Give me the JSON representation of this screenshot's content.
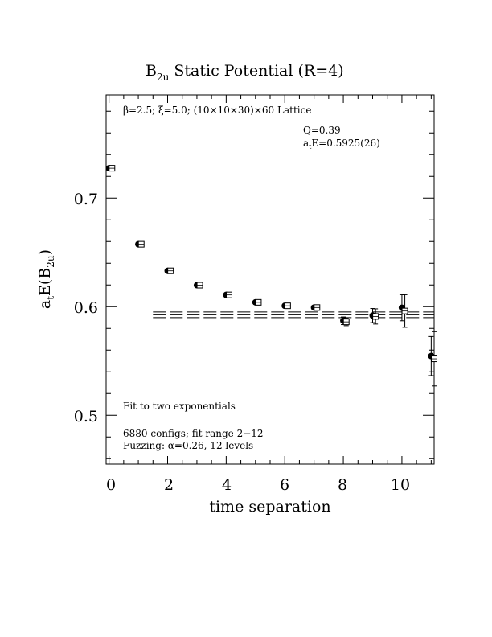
{
  "chart_data": {
    "type": "scatter",
    "title": "B",
    "title_sub": "2u",
    "title_rest": " Static Potential (R=4)",
    "xlabel": "time separation",
    "ylabel_main": "a",
    "ylabel_sub1": "t",
    "ylabel_mid": "E(B",
    "ylabel_sub2": "2u",
    "ylabel_end": ")",
    "xlim": [
      -0.1,
      11.1
    ],
    "ylim": [
      0.455,
      0.795
    ],
    "x_ticks": [
      0,
      2,
      4,
      6,
      8,
      10
    ],
    "y_ticks": [
      0.5,
      0.6,
      0.7
    ],
    "x_tick_labels": [
      "0",
      "2",
      "4",
      "6",
      "8",
      "10"
    ],
    "y_tick_labels": [
      "0.5",
      "0.6",
      "0.7"
    ],
    "grid": false,
    "legend": "none",
    "lattice_note": {
      "beta": "β=2.5;",
      "xi": "ξ=5.0;",
      "lattice": "(10×10×30)×60 Lattice"
    },
    "fit_quality": "Q=0.39",
    "fit_result_prefix": "a",
    "fit_result_sub": "t",
    "fit_result_rest": "E=0.5925(26)",
    "fit_method": "Fit to two exponentials",
    "configs": "6880 configs; fit range 2−12",
    "fuzzing": "Fuzzing: α=0.26, 12 levels",
    "fit": {
      "value": 0.5925,
      "error": 0.0026,
      "x_range": [
        1.5,
        11.1
      ]
    },
    "series": [
      {
        "marker": "filled-circle",
        "x": [
          0,
          1,
          2,
          3,
          4,
          5,
          6,
          7,
          8,
          9,
          10,
          11
        ],
        "y": [
          0.7275,
          0.6575,
          0.633,
          0.6198,
          0.6108,
          0.604,
          0.6008,
          0.5992,
          0.587,
          0.5918,
          0.599,
          0.5545
        ],
        "err": [
          0.0008,
          0.0008,
          0.0009,
          0.001,
          0.0011,
          0.0012,
          0.0014,
          0.0018,
          0.0035,
          0.0065,
          0.012,
          0.018
        ]
      },
      {
        "marker": "open-square",
        "x": [
          0.1,
          1.1,
          2.1,
          3.1,
          4.1,
          5.1,
          6.1,
          7.1,
          8.1,
          9.1,
          10.1,
          11.1
        ],
        "y": [
          0.7275,
          0.6575,
          0.633,
          0.6198,
          0.6108,
          0.604,
          0.6008,
          0.5992,
          0.586,
          0.591,
          0.596,
          0.552
        ],
        "err": [
          0.0008,
          0.0008,
          0.0009,
          0.001,
          0.0011,
          0.0012,
          0.0014,
          0.0018,
          0.0035,
          0.007,
          0.015,
          0.025
        ]
      }
    ]
  }
}
